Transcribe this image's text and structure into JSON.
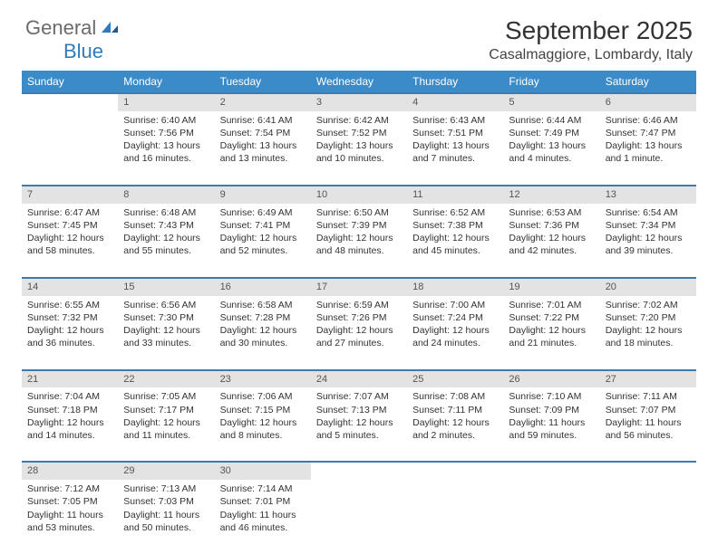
{
  "logo": {
    "text1": "General",
    "text2": "Blue"
  },
  "title": "September 2025",
  "location": "Casalmaggiore, Lombardy, Italy",
  "colors": {
    "header_bg": "#3b8bc9",
    "header_text": "#ffffff",
    "daynum_bg": "#e3e3e3",
    "row_border": "#3b7bb0",
    "logo_gray": "#6b6b6b",
    "logo_blue": "#2f7bbf"
  },
  "weekdays": [
    "Sunday",
    "Monday",
    "Tuesday",
    "Wednesday",
    "Thursday",
    "Friday",
    "Saturday"
  ],
  "weeks": [
    [
      null,
      {
        "n": "1",
        "sr": "6:40 AM",
        "ss": "7:56 PM",
        "dl": "13 hours and 16 minutes."
      },
      {
        "n": "2",
        "sr": "6:41 AM",
        "ss": "7:54 PM",
        "dl": "13 hours and 13 minutes."
      },
      {
        "n": "3",
        "sr": "6:42 AM",
        "ss": "7:52 PM",
        "dl": "13 hours and 10 minutes."
      },
      {
        "n": "4",
        "sr": "6:43 AM",
        "ss": "7:51 PM",
        "dl": "13 hours and 7 minutes."
      },
      {
        "n": "5",
        "sr": "6:44 AM",
        "ss": "7:49 PM",
        "dl": "13 hours and 4 minutes."
      },
      {
        "n": "6",
        "sr": "6:46 AM",
        "ss": "7:47 PM",
        "dl": "13 hours and 1 minute."
      }
    ],
    [
      {
        "n": "7",
        "sr": "6:47 AM",
        "ss": "7:45 PM",
        "dl": "12 hours and 58 minutes."
      },
      {
        "n": "8",
        "sr": "6:48 AM",
        "ss": "7:43 PM",
        "dl": "12 hours and 55 minutes."
      },
      {
        "n": "9",
        "sr": "6:49 AM",
        "ss": "7:41 PM",
        "dl": "12 hours and 52 minutes."
      },
      {
        "n": "10",
        "sr": "6:50 AM",
        "ss": "7:39 PM",
        "dl": "12 hours and 48 minutes."
      },
      {
        "n": "11",
        "sr": "6:52 AM",
        "ss": "7:38 PM",
        "dl": "12 hours and 45 minutes."
      },
      {
        "n": "12",
        "sr": "6:53 AM",
        "ss": "7:36 PM",
        "dl": "12 hours and 42 minutes."
      },
      {
        "n": "13",
        "sr": "6:54 AM",
        "ss": "7:34 PM",
        "dl": "12 hours and 39 minutes."
      }
    ],
    [
      {
        "n": "14",
        "sr": "6:55 AM",
        "ss": "7:32 PM",
        "dl": "12 hours and 36 minutes."
      },
      {
        "n": "15",
        "sr": "6:56 AM",
        "ss": "7:30 PM",
        "dl": "12 hours and 33 minutes."
      },
      {
        "n": "16",
        "sr": "6:58 AM",
        "ss": "7:28 PM",
        "dl": "12 hours and 30 minutes."
      },
      {
        "n": "17",
        "sr": "6:59 AM",
        "ss": "7:26 PM",
        "dl": "12 hours and 27 minutes."
      },
      {
        "n": "18",
        "sr": "7:00 AM",
        "ss": "7:24 PM",
        "dl": "12 hours and 24 minutes."
      },
      {
        "n": "19",
        "sr": "7:01 AM",
        "ss": "7:22 PM",
        "dl": "12 hours and 21 minutes."
      },
      {
        "n": "20",
        "sr": "7:02 AM",
        "ss": "7:20 PM",
        "dl": "12 hours and 18 minutes."
      }
    ],
    [
      {
        "n": "21",
        "sr": "7:04 AM",
        "ss": "7:18 PM",
        "dl": "12 hours and 14 minutes."
      },
      {
        "n": "22",
        "sr": "7:05 AM",
        "ss": "7:17 PM",
        "dl": "12 hours and 11 minutes."
      },
      {
        "n": "23",
        "sr": "7:06 AM",
        "ss": "7:15 PM",
        "dl": "12 hours and 8 minutes."
      },
      {
        "n": "24",
        "sr": "7:07 AM",
        "ss": "7:13 PM",
        "dl": "12 hours and 5 minutes."
      },
      {
        "n": "25",
        "sr": "7:08 AM",
        "ss": "7:11 PM",
        "dl": "12 hours and 2 minutes."
      },
      {
        "n": "26",
        "sr": "7:10 AM",
        "ss": "7:09 PM",
        "dl": "11 hours and 59 minutes."
      },
      {
        "n": "27",
        "sr": "7:11 AM",
        "ss": "7:07 PM",
        "dl": "11 hours and 56 minutes."
      }
    ],
    [
      {
        "n": "28",
        "sr": "7:12 AM",
        "ss": "7:05 PM",
        "dl": "11 hours and 53 minutes."
      },
      {
        "n": "29",
        "sr": "7:13 AM",
        "ss": "7:03 PM",
        "dl": "11 hours and 50 minutes."
      },
      {
        "n": "30",
        "sr": "7:14 AM",
        "ss": "7:01 PM",
        "dl": "11 hours and 46 minutes."
      },
      null,
      null,
      null,
      null
    ]
  ],
  "labels": {
    "sunrise": "Sunrise:",
    "sunset": "Sunset:",
    "daylight": "Daylight:"
  }
}
